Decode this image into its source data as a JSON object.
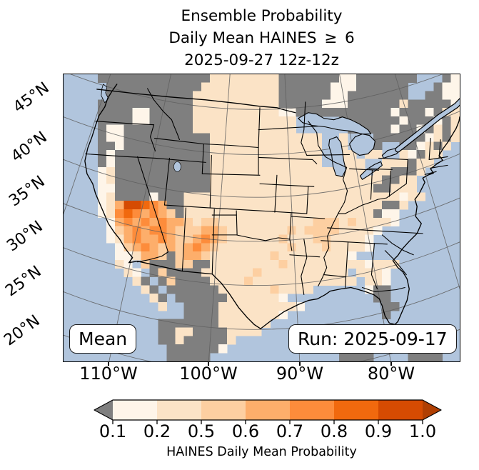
{
  "title": {
    "line1": "Ensemble Probability",
    "line2": "Daily Mean HAINES ≥ 6",
    "line3": "2025-09-27 12z-12z"
  },
  "map_overlays": {
    "mean_badge": "Mean",
    "run_badge": "Run: 2025-09-17"
  },
  "axes": {
    "lat_tick_labels": [
      "45°N",
      "40°N",
      "35°N",
      "30°N",
      "25°N",
      "20°N"
    ],
    "lon_tick_labels": [
      "110°W",
      "100°W",
      "90°W",
      "80°W"
    ]
  },
  "colorbar": {
    "title": "HAINES Daily Mean Probability",
    "tick_labels": [
      "0.1",
      "0.2",
      "0.5",
      "0.6",
      "0.7",
      "0.8",
      "0.9",
      "1.0"
    ],
    "under_color": "#7f7f7f",
    "over_color": "#b03f03",
    "segment_colors": [
      "#fef5e9",
      "#fbe3c6",
      "#fdcfa1",
      "#fdae6b",
      "#fd8c3b",
      "#f1690e",
      "#d54b02"
    ]
  },
  "chart_data": {
    "type": "heatmap",
    "title": "Ensemble Probability Daily Mean HAINES ≥ 6, 2025-09-27 12z-12z",
    "colorbar_label": "HAINES Daily Mean Probability",
    "scale_breaks": [
      0.1,
      0.2,
      0.5,
      0.6,
      0.7,
      0.8,
      0.9,
      1.0
    ],
    "scale_note": "gray = probability below 0.1; left colorbar arrow gray (under), right arrow dark orange (over)",
    "lat_ticks_deg_n": [
      45,
      40,
      35,
      30,
      25,
      20
    ],
    "lon_ticks_deg_w": [
      110,
      100,
      90,
      80
    ],
    "annotations": [
      "Mean",
      "Run: 2025-09-17"
    ],
    "colors": {
      "ocean": "#b1c5dd",
      "masked_land": "#7f7f7f",
      "coast_border": "#000000",
      "graticule": "#5f5f5f"
    },
    "grid": {
      "cols": 46,
      "rows": 34,
      "cell_categories": {
        "~": "water",
        "g": "<0.1",
        "a": "0.1-0.2",
        "b": "0.2-0.5",
        "c": "0.5-0.6",
        "d": "0.6-0.7",
        "e": "0.7-0.8",
        "f": "0.8-0.9",
        "h": "0.9-1.0"
      },
      "palette": {
        "~": null,
        "g": "#7f7f7f",
        "a": "#fef5e9",
        "b": "#fbe3c6",
        "c": "#fdcfa1",
        "d": "#fdae6b",
        "e": "#fd8c3b",
        "f": "#f1690e",
        "h": "#d54b02"
      },
      "rle_rows": [
        "~4 g13 b8 g7 a2 g7 ~3 g1 a1",
        "~5 g11 b9 g6 a3 g6 ~3 g1 a2",
        "~5 g10 b10 g6 a2 g7 ~2 g2 a2",
        "~4 g11 b10 g5 a3 g6 b1 g5 a1",
        "~4 g4 a2 g5 b10 a2 g11 a1 g3 a1 g1 b2",
        "~4 g4 a2 g5 b12 ~5 g7 a1 g3 a1 g1 b1",
        "~4 g1 a2 g8 b12 ~6 g5 a1 g2 a1 g1 b1 g1 b1",
        "~4 g1 a2 g10 b13 ~2 b1 ~3 g6 a1 b1 g1 b1",
        "~4 g2 a1 g10 b13 ~2 b1 ~2 b1 g1 ~2 g2 a1 b1 g1 b1 ~1",
        "~4 g1 a1 g11 b13 ~2 b2 ~1 b2 ~2 b1 a1 g1 b2 ~2",
        "~4 g1 a1 g11 b13 ~2 b3 ~2 b3 g1 b2 ~3",
        "~4 a1 b1 g11 b18 ~1 b2 g3 b1 ~4",
        "~4 a1 b1 g11 b20 g2 b2 ~5",
        "~4 a2 g11 b19 g2 b3 ~5",
        "~4 a1 b1 g4 a1 g3 b25 a1 b2 ~4",
        "~4 a1 b1 d1 h2 f1 e1 d1 g2 b23 g2 b1 ~6",
        "~4 a1 b1 e1 f1 e1 d1 e1 d1 c1 g1 b22 g1 a2 ~7",
        "~5 a1 d1 e1 d1 e1 d1 e1 d2 c1 b1 c2 b9 b2 c3 b1 c1 b4 a1 ~7",
        "~5 a1 c1 d1 e1 d1 e2 d1 c3 d2 c1 b7 c1 b1 c4 b1 b3 a1 ~9",
        "~5 a1 b1 d1 e1 d2 e1 d1 c2 d1 e1 d1 c1 b6 c1 b3 c2 b4 a1 ~10",
        "~6 a1 c1 d1 e1 d1 c1 d1 c1 d1 e1 d1 c1 b1 b6 b1 c1 b3 c1 b4 a1 ~10",
        "~6 a2 b1 d2 c1 g1 c1 d2 c1 b2 b5 c1 b2 b6 a1 ~12",
        "~6 b1 a1 ~1 c1 g3 c2 g2 b8 c1 b9 a1 b3 ~7",
        "~7 b1 a1 ~1 g1 c1 g4 b2 b4 c1 b8 b2 ~1 b3 a1 ~8",
        "~8 b1 g1 ~1 g1 c1 g4 b2 b2 c1 b1 b2 b1 b6 b2 ~1 b2 a1 ~8",
        "~9 b1 g1 ~1 g6 b4 b2 c1 b4 ~6 a1 g2 ~8",
        "~10 b1 g1 ~1 g6 b6 a1 ~10 g2 ~8",
        "~11 b1 ~2 g4 b1 b8 a1 ~9 g2 ~7",
        "~14 g4 b2 b5 a1 ~11 g1 ~8",
        "~11 g7 b2 b4 ~22",
        "~11 g2 b2 g4 b2 b2 ~11 g3 ~9",
        "~11 g2 b1 g5 b1 ~14 g3 ~9",
        "~12 g6 a1 ~14 g4 ~4 g3 ~2",
        "~12 g5 ~15 g4 ~4 g4 ~2"
      ]
    }
  }
}
